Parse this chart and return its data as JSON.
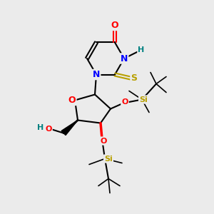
{
  "background_color": "#ebebeb",
  "bond_color": "#000000",
  "atom_colors": {
    "O": "#ff0000",
    "N": "#0000ff",
    "S": "#b8a000",
    "Si": "#b8a000",
    "H_label": "#008080",
    "C": "#000000"
  },
  "figsize": [
    3.0,
    3.0
  ],
  "dpi": 100
}
